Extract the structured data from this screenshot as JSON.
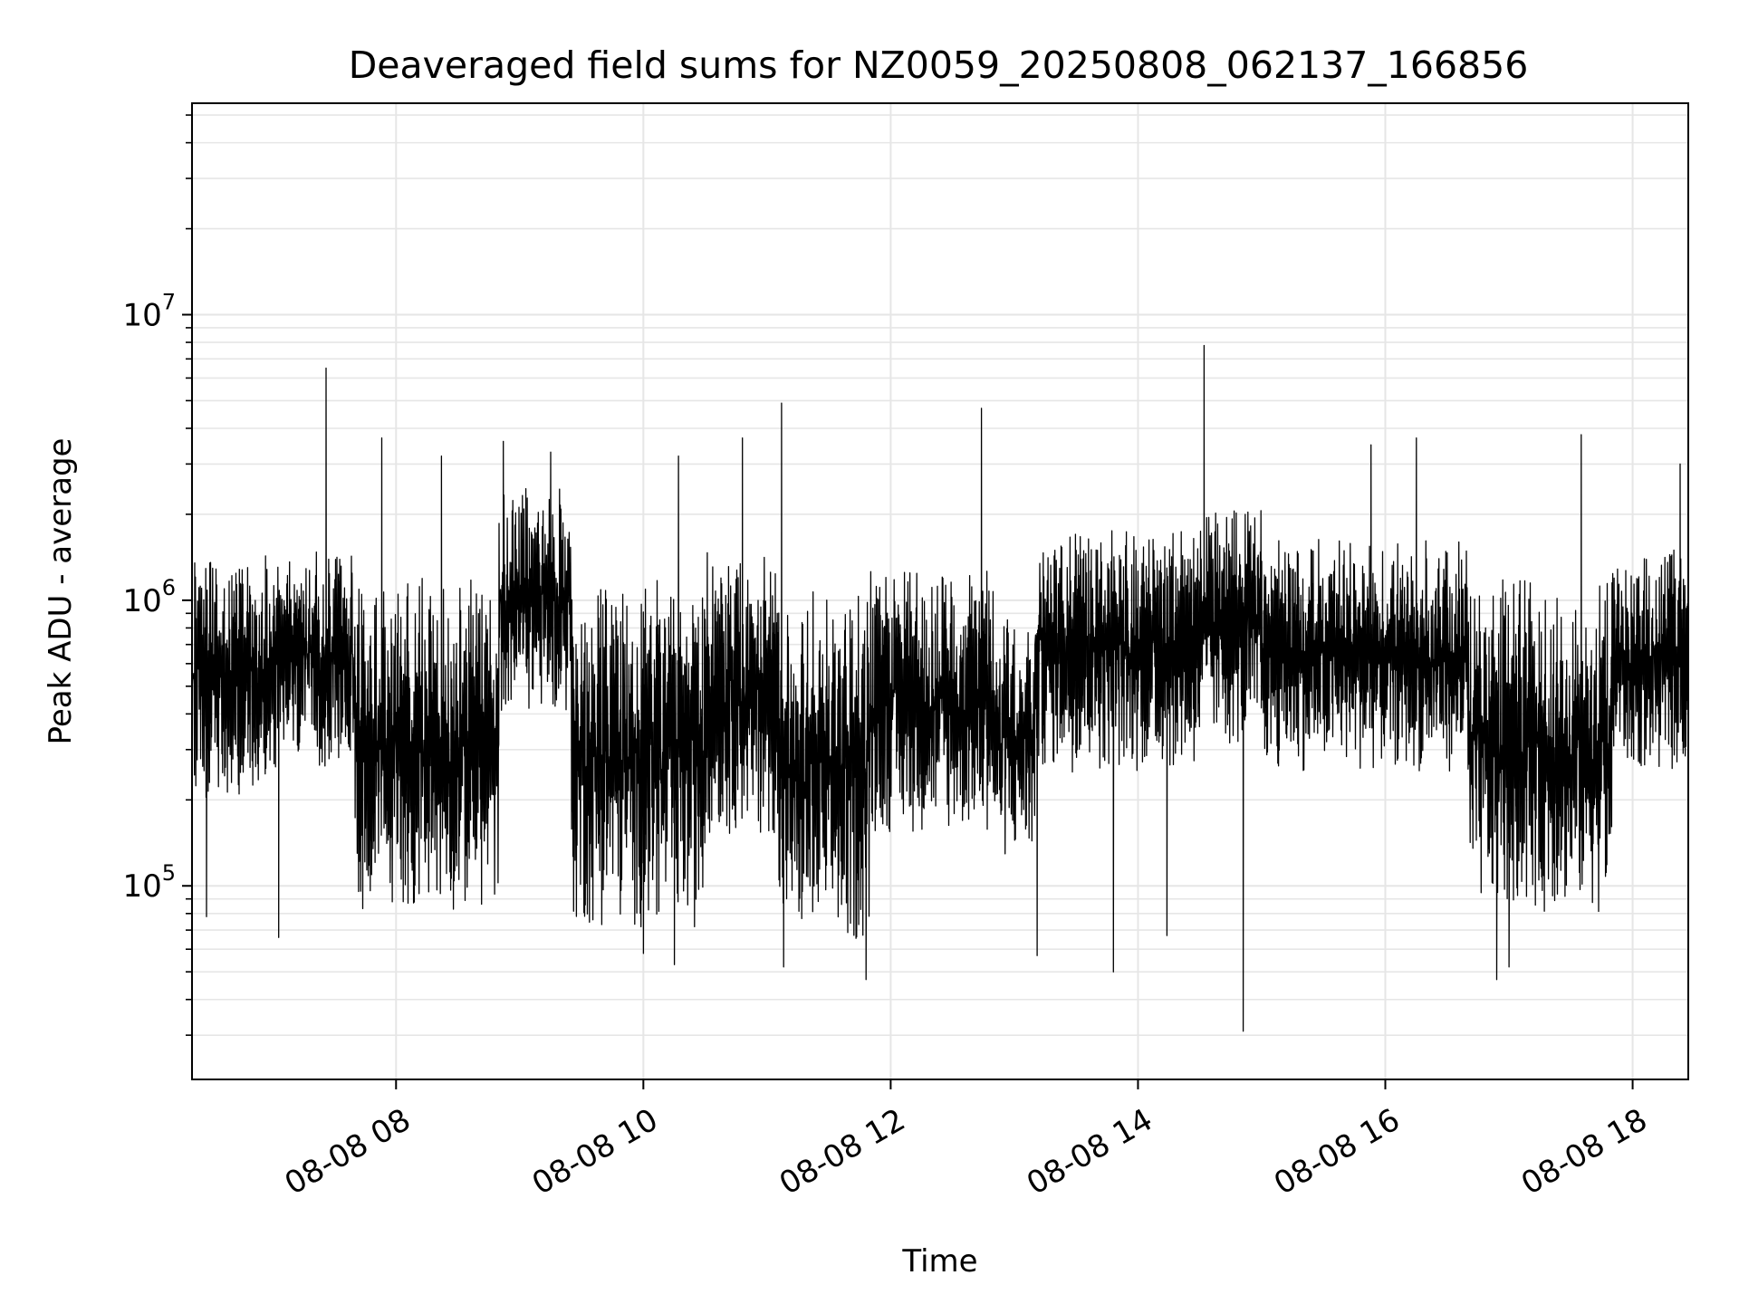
{
  "chart_data": {
    "type": "line",
    "title": "Deaveraged field sums for NZ0059_20250808_062137_166856",
    "xlabel": "Time",
    "ylabel": "Peak ADU - average",
    "x_range": [
      "08-08 06:21",
      "08-08 18:27"
    ],
    "y_scale": "log",
    "ylim": [
      21000,
      55000000
    ],
    "grid": true,
    "legend": "none",
    "x_ticks": [
      {
        "time": "08-08 08:00",
        "label": "08-08 08"
      },
      {
        "time": "08-08 10:00",
        "label": "08-08 10"
      },
      {
        "time": "08-08 12:00",
        "label": "08-08 12"
      },
      {
        "time": "08-08 14:00",
        "label": "08-08 14"
      },
      {
        "time": "08-08 16:00",
        "label": "08-08 16"
      },
      {
        "time": "08-08 18:00",
        "label": "08-08 18"
      }
    ],
    "y_ticks": [
      {
        "value": 100000,
        "base": "10",
        "exp": "5"
      },
      {
        "value": 1000000,
        "base": "10",
        "exp": "6"
      },
      {
        "value": 10000000,
        "base": "10",
        "exp": "7"
      }
    ],
    "series": [
      {
        "color": "#000000",
        "segments": [
          {
            "start": "08-08 06:21",
            "end": "08-08 07:00",
            "low": 200000,
            "high": 1500000
          },
          {
            "start": "08-08 07:00",
            "end": "08-08 07:40",
            "low": 250000,
            "high": 1500000
          },
          {
            "start": "08-08 07:40",
            "end": "08-08 08:50",
            "low": 80000,
            "high": 1200000
          },
          {
            "start": "08-08 08:50",
            "end": "08-08 09:25",
            "low": 400000,
            "high": 2500000
          },
          {
            "start": "08-08 09:25",
            "end": "08-08 10:30",
            "low": 70000,
            "high": 1200000
          },
          {
            "start": "08-08 10:30",
            "end": "08-08 11:05",
            "low": 150000,
            "high": 1500000
          },
          {
            "start": "08-08 11:05",
            "end": "08-08 11:50",
            "low": 60000,
            "high": 1100000
          },
          {
            "start": "08-08 11:50",
            "end": "08-08 12:50",
            "low": 150000,
            "high": 1300000
          },
          {
            "start": "08-08 12:50",
            "end": "08-08 13:10",
            "low": 120000,
            "high": 900000
          },
          {
            "start": "08-08 13:10",
            "end": "08-08 14:30",
            "low": 250000,
            "high": 1800000
          },
          {
            "start": "08-08 14:30",
            "end": "08-08 15:00",
            "low": 300000,
            "high": 2200000
          },
          {
            "start": "08-08 15:00",
            "end": "08-08 16:40",
            "low": 250000,
            "high": 1700000
          },
          {
            "start": "08-08 16:40",
            "end": "08-08 17:50",
            "low": 80000,
            "high": 1200000
          },
          {
            "start": "08-08 17:50",
            "end": "08-08 18:27",
            "low": 250000,
            "high": 1500000
          }
        ],
        "spikes": [
          {
            "time": "08-08 07:26",
            "value": 6500000
          },
          {
            "time": "08-08 07:53",
            "value": 3700000
          },
          {
            "time": "08-08 08:22",
            "value": 3200000
          },
          {
            "time": "08-08 08:52",
            "value": 3600000
          },
          {
            "time": "08-08 09:15",
            "value": 3300000
          },
          {
            "time": "08-08 10:17",
            "value": 3200000
          },
          {
            "time": "08-08 10:48",
            "value": 3700000
          },
          {
            "time": "08-08 11:07",
            "value": 4900000
          },
          {
            "time": "08-08 12:44",
            "value": 4700000
          },
          {
            "time": "08-08 14:32",
            "value": 7800000
          },
          {
            "time": "08-08 15:53",
            "value": 3500000
          },
          {
            "time": "08-08 16:15",
            "value": 3700000
          },
          {
            "time": "08-08 17:35",
            "value": 3800000
          },
          {
            "time": "08-08 18:23",
            "value": 3000000
          }
        ],
        "dips": [
          {
            "time": "08-08 06:28",
            "value": 78000
          },
          {
            "time": "08-08 07:03",
            "value": 66000
          },
          {
            "time": "08-08 10:00",
            "value": 58000
          },
          {
            "time": "08-08 10:15",
            "value": 53000
          },
          {
            "time": "08-08 11:08",
            "value": 52000
          },
          {
            "time": "08-08 11:48",
            "value": 47000
          },
          {
            "time": "08-08 13:11",
            "value": 57000
          },
          {
            "time": "08-08 13:48",
            "value": 50000
          },
          {
            "time": "08-08 14:14",
            "value": 67000
          },
          {
            "time": "08-08 14:51",
            "value": 31000
          },
          {
            "time": "08-08 16:54",
            "value": 47000
          },
          {
            "time": "08-08 17:00",
            "value": 52000
          }
        ]
      }
    ]
  }
}
